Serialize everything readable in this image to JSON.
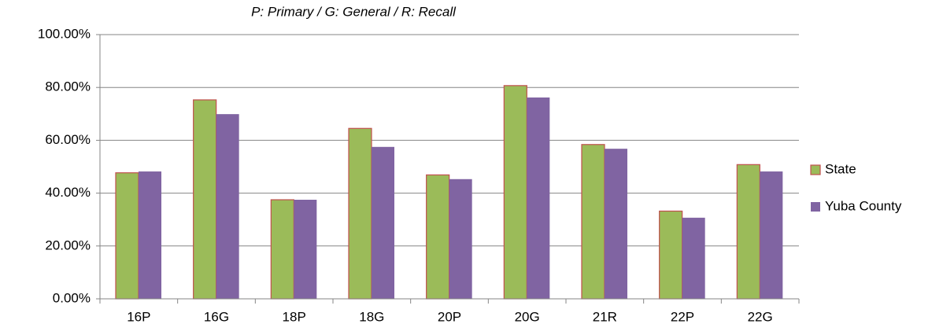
{
  "chart_data": {
    "type": "bar",
    "title": "P: Primary / G: General / R: Recall",
    "categories": [
      "16P",
      "16G",
      "18P",
      "18G",
      "20P",
      "20G",
      "21R",
      "22P",
      "22G"
    ],
    "series": [
      {
        "name": "State",
        "color": "#9bbb59",
        "edgecolor": "#c0504d",
        "values": [
          47.7,
          75.3,
          37.5,
          64.5,
          46.9,
          80.7,
          58.4,
          33.2,
          50.8
        ]
      },
      {
        "name": "Yuba County",
        "color": "#8064a2",
        "values": [
          48.2,
          69.9,
          37.5,
          57.5,
          45.3,
          76.2,
          56.8,
          30.7,
          48.2
        ]
      }
    ],
    "ylim": [
      0,
      100
    ],
    "yticks": [
      {
        "value": 0,
        "label": "0.00%"
      },
      {
        "value": 20,
        "label": "20.00%"
      },
      {
        "value": 40,
        "label": "40.00%"
      },
      {
        "value": 60,
        "label": "60.00%"
      },
      {
        "value": 80,
        "label": "80.00%"
      },
      {
        "value": 100,
        "label": "100.00%"
      }
    ],
    "grid": true,
    "legend": "right"
  }
}
